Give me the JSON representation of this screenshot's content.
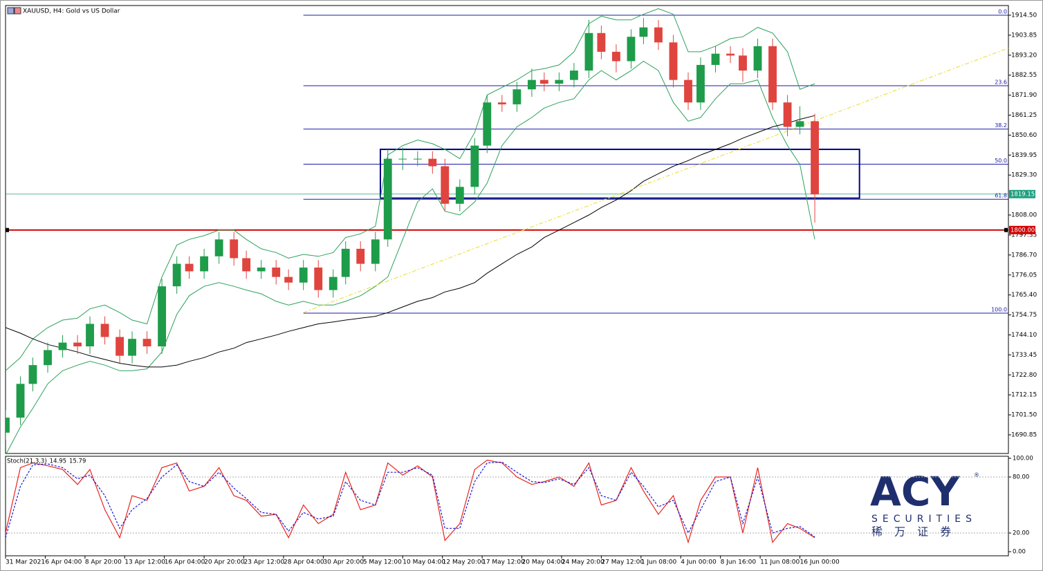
{
  "chart_data": [
    {
      "type": "candlestick",
      "title": "XAUUSD, H4:  Gold vs US Dollar",
      "x": [
        0,
        6,
        11,
        17,
        23,
        29,
        34,
        40,
        46,
        51,
        57,
        63,
        69,
        74,
        80,
        86,
        92,
        97,
        103,
        109,
        114,
        120,
        126,
        132,
        137,
        143,
        149,
        154,
        160,
        166,
        172,
        177,
        183,
        189,
        194,
        200,
        206,
        212,
        217,
        223,
        229,
        235,
        240,
        246,
        252,
        257,
        263,
        269,
        275,
        280,
        286,
        292,
        297,
        303,
        309,
        315,
        320,
        326
      ],
      "open": [
        1692,
        1700,
        1718,
        1728,
        1736,
        1740,
        1738,
        1750,
        1743,
        1733,
        1742,
        1738,
        1770,
        1782,
        1778,
        1786,
        1795,
        1785,
        1778,
        1780,
        1775,
        1772,
        1780,
        1768,
        1775,
        1790,
        1782,
        1795,
        1838,
        1838,
        1838,
        1834,
        1814,
        1823,
        1845,
        1868,
        1867,
        1875,
        1880,
        1878,
        1880,
        1885,
        1905,
        1895,
        1890,
        1903,
        1908,
        1900,
        1880,
        1868,
        1888,
        1894,
        1893,
        1885,
        1898,
        1868,
        1855,
        1858
      ],
      "high": [
        1704,
        1722,
        1732,
        1740,
        1744,
        1744,
        1754,
        1754,
        1747,
        1746,
        1746,
        1774,
        1786,
        1786,
        1790,
        1799,
        1799,
        1789,
        1784,
        1784,
        1779,
        1784,
        1784,
        1779,
        1794,
        1794,
        1799,
        1843,
        1844,
        1842,
        1842,
        1838,
        1827,
        1849,
        1872,
        1872,
        1879,
        1886,
        1884,
        1884,
        1889,
        1912,
        1909,
        1899,
        1907,
        1913,
        1912,
        1904,
        1884,
        1892,
        1898,
        1898,
        1897,
        1902,
        1902,
        1872,
        1866,
        1862
      ],
      "low": [
        1688,
        1696,
        1714,
        1724,
        1732,
        1734,
        1734,
        1739,
        1729,
        1729,
        1734,
        1734,
        1766,
        1774,
        1774,
        1782,
        1781,
        1774,
        1774,
        1771,
        1768,
        1768,
        1764,
        1764,
        1771,
        1778,
        1778,
        1791,
        1832,
        1834,
        1830,
        1810,
        1810,
        1819,
        1841,
        1863,
        1863,
        1871,
        1874,
        1874,
        1876,
        1881,
        1891,
        1884,
        1886,
        1899,
        1896,
        1876,
        1864,
        1864,
        1884,
        1889,
        1879,
        1881,
        1864,
        1850,
        1851,
        1804
      ],
      "close": [
        1700,
        1718,
        1728,
        1736,
        1740,
        1738,
        1750,
        1743,
        1733,
        1742,
        1738,
        1770,
        1782,
        1778,
        1786,
        1795,
        1785,
        1778,
        1780,
        1775,
        1772,
        1780,
        1768,
        1775,
        1790,
        1782,
        1795,
        1838,
        1838,
        1838,
        1834,
        1814,
        1823,
        1845,
        1868,
        1867,
        1875,
        1880,
        1878,
        1880,
        1885,
        1905,
        1895,
        1890,
        1903,
        1908,
        1900,
        1880,
        1868,
        1888,
        1894,
        1893,
        1885,
        1898,
        1868,
        1855,
        1858,
        1819
      ],
      "up_color": "#1e9c4a",
      "down_color": "#e0443e",
      "lines": [
        {
          "color": "#2ca05a",
          "values": [
            1725,
            1732,
            1742,
            1748,
            1752,
            1753,
            1758,
            1760,
            1756,
            1752,
            1750,
            1775,
            1792,
            1795,
            1797,
            1800,
            1800,
            1795,
            1790,
            1788,
            1785,
            1787,
            1786,
            1788,
            1796,
            1798,
            1802,
            1840,
            1845,
            1848,
            1846,
            1843,
            1838,
            1852,
            1872,
            1876,
            1880,
            1885,
            1886,
            1888,
            1895,
            1910,
            1914,
            1912,
            1912,
            1915,
            1918,
            1915,
            1895,
            1895,
            1898,
            1902,
            1903,
            1908,
            1905,
            1895,
            1875,
            1878
          ]
        },
        {
          "color": "#2ca05a",
          "values": [
            1680,
            1695,
            1705,
            1718,
            1725,
            1728,
            1730,
            1728,
            1725,
            1725,
            1726,
            1735,
            1755,
            1765,
            1770,
            1772,
            1770,
            1768,
            1766,
            1762,
            1760,
            1762,
            1760,
            1760,
            1762,
            1765,
            1770,
            1775,
            1795,
            1815,
            1822,
            1810,
            1808,
            1815,
            1825,
            1845,
            1855,
            1860,
            1865,
            1868,
            1870,
            1880,
            1885,
            1880,
            1885,
            1890,
            1885,
            1868,
            1858,
            1860,
            1870,
            1878,
            1878,
            1880,
            1860,
            1845,
            1835,
            1795
          ]
        },
        {
          "color": "#000000",
          "values": [
            1748,
            1745,
            1742,
            1739,
            1737,
            1735,
            1733,
            1731,
            1729,
            1728,
            1727,
            1727,
            1728,
            1730,
            1732,
            1735,
            1737,
            1740,
            1742,
            1744,
            1746,
            1748,
            1750,
            1751,
            1752,
            1753,
            1754,
            1756,
            1759,
            1762,
            1764,
            1767,
            1769,
            1772,
            1777,
            1782,
            1787,
            1791,
            1796,
            1800,
            1804,
            1808,
            1812,
            1816,
            1821,
            1826,
            1830,
            1834,
            1837,
            1840,
            1843,
            1846,
            1849,
            1852,
            1855,
            1857,
            1859,
            1861
          ]
        }
      ],
      "xlim": [
        0,
        404
      ],
      "xticks": [
        {
          "value": 0,
          "label": "31 Mar 2021"
        },
        {
          "value": 16,
          "label": "6 Apr 04:00"
        },
        {
          "value": 32,
          "label": "8 Apr 20:00"
        },
        {
          "value": 48,
          "label": "13 Apr 12:00"
        },
        {
          "value": 64,
          "label": "16 Apr 04:00"
        },
        {
          "value": 80,
          "label": "20 Apr 20:00"
        },
        {
          "value": 96,
          "label": "23 Apr 12:00"
        },
        {
          "value": 112,
          "label": "28 Apr 04:00"
        },
        {
          "value": 128,
          "label": "30 Apr 20:00"
        },
        {
          "value": 144,
          "label": "5 May 12:00"
        },
        {
          "value": 160,
          "label": "10 May 04:00"
        },
        {
          "value": 176,
          "label": "12 May 20:00"
        },
        {
          "value": 192,
          "label": "17 May 12:00"
        },
        {
          "value": 208,
          "label": "20 May 04:00"
        },
        {
          "value": 224,
          "label": "24 May 20:00"
        },
        {
          "value": 240,
          "label": "27 May 12:00"
        },
        {
          "value": 256,
          "label": "1 Jun 08:00"
        },
        {
          "value": 272,
          "label": "4 Jun 00:00"
        },
        {
          "value": 288,
          "label": "8 Jun 16:00"
        },
        {
          "value": 304,
          "label": "11 Jun 08:00"
        },
        {
          "value": 320,
          "label": "16 Jun 00:00"
        }
      ],
      "ylim": [
        1680.9,
        1919.66
      ],
      "yticks": [
        {
          "value": 1914.5,
          "label": "1914.50"
        },
        1903.85,
        {
          "value": 1893.2,
          "label": "1893.20"
        },
        1882.55,
        {
          "value": 1871.9,
          "label": "1871.90"
        },
        1861.25,
        {
          "value": 1850.6,
          "label": "1850.60"
        },
        1839.95,
        {
          "value": 1829.3,
          "label": "1829.30"
        },
        {
          "value": 1808,
          "label": "1808.00"
        },
        1797.35,
        {
          "value": 1786.7,
          "label": "1786.70"
        },
        1776.05,
        {
          "value": 1765.4,
          "label": "1765.40"
        },
        1754.75,
        {
          "value": 1744.1,
          "label": "1744.10"
        },
        1733.45,
        {
          "value": 1722.8,
          "label": "1722.80"
        },
        1712.15,
        {
          "value": 1701.5,
          "label": "1701.50"
        },
        1690.85
      ],
      "fibonacci": {
        "start_x": 120,
        "color": "#1a1aa6",
        "levels": [
          {
            "label": "0.0",
            "price": 1914.5
          },
          {
            "label": "23.6",
            "price": 1876.9
          },
          {
            "label": "38.2",
            "price": 1853.8
          },
          {
            "label": "50.0",
            "price": 1835.1
          },
          {
            "label": "61.8",
            "price": 1816.4
          },
          {
            "label": "100.0",
            "price": 1755.7
          }
        ]
      },
      "box": {
        "x": [
          151,
          344
        ],
        "y": [
          1843,
          1817
        ],
        "color": "#000080"
      },
      "trendline": {
        "x": [
          120,
          404
        ],
        "y": [
          1756,
          1897
        ],
        "color": "#f0e040"
      },
      "current_price": {
        "value": 1819.15,
        "color": "#20a080"
      },
      "level_line": {
        "value": 1800,
        "label": "1800.00",
        "color": "#d00000"
      }
    },
    {
      "type": "stochastic",
      "title": "Stoch(21,3,3)",
      "series": [
        {
          "color": "#e8231d",
          "values": [
            20,
            90,
            95,
            92,
            88,
            72,
            88,
            45,
            15,
            60,
            55,
            90,
            95,
            65,
            70,
            90,
            60,
            55,
            38,
            40,
            15,
            50,
            30,
            40,
            85,
            45,
            50,
            95,
            82,
            92,
            80,
            12,
            30,
            88,
            98,
            95,
            80,
            72,
            75,
            80,
            70,
            95,
            50,
            55,
            90,
            65,
            40,
            60,
            10,
            55,
            80,
            80,
            20,
            90,
            10,
            30,
            25,
            14.95
          ]
        },
        {
          "color": "#1a1ad6",
          "dashed": true,
          "values": [
            15,
            70,
            93,
            94,
            90,
            78,
            82,
            60,
            25,
            45,
            57,
            80,
            93,
            75,
            70,
            85,
            68,
            57,
            42,
            40,
            22,
            42,
            35,
            38,
            75,
            55,
            50,
            85,
            85,
            90,
            82,
            25,
            25,
            75,
            95,
            96,
            85,
            75,
            74,
            78,
            72,
            90,
            60,
            55,
            85,
            70,
            48,
            55,
            20,
            45,
            75,
            80,
            30,
            80,
            20,
            25,
            27,
            15.79
          ]
        }
      ],
      "ylim": [
        -4.4,
        102.2
      ],
      "yticks": [
        {
          "value": 100,
          "label": "100.00"
        },
        {
          "value": 80,
          "label": "80.00"
        },
        {
          "value": 20,
          "label": "20.00"
        },
        {
          "value": 0,
          "label": "0.00"
        }
      ],
      "levels": [
        80,
        20
      ]
    }
  ],
  "logo": {
    "brand": "ACY",
    "mark": "®",
    "sub": "SECURITIES",
    "cn": "稀 万 证 券"
  }
}
